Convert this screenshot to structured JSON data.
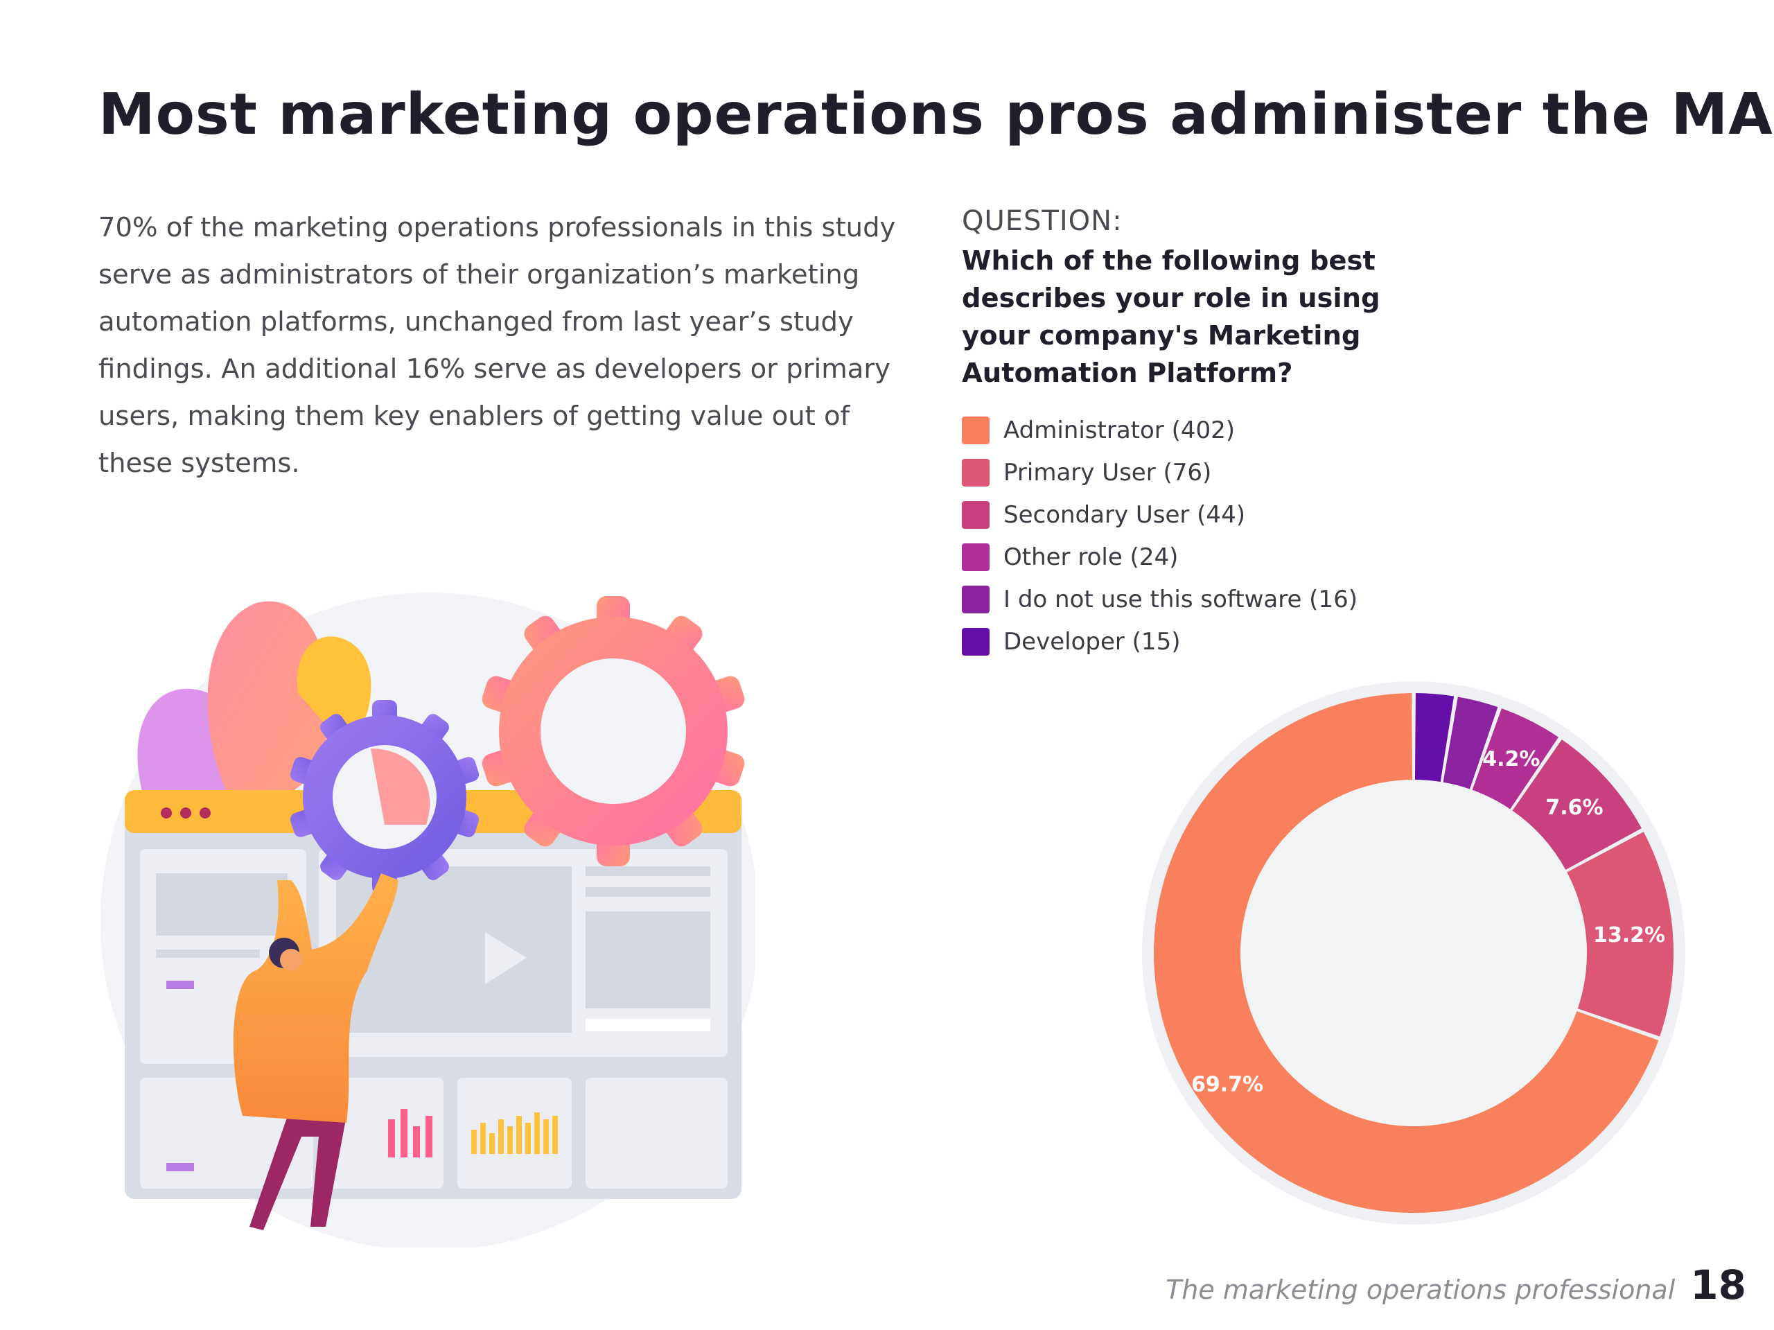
{
  "title": "Most marketing operations pros administer the MAP",
  "body_text": "70% of the marketing operations professionals in this study serve as administrators of their organization’s marketing automation platforms, unchanged from last year’s study findings. An additional 16% serve as developers or primary users, making them key enablers of getting value out of these systems.",
  "question": {
    "label": "QUESTION:",
    "text": "Which of the following best describes your role in using your company's Marketing Automation Platform?"
  },
  "legend": [
    {
      "label": "Administrator (402)",
      "color": "#F8805D"
    },
    {
      "label": "Primary User (76)",
      "color": "#DC5775"
    },
    {
      "label": "Secondary User (44)",
      "color": "#C9407F"
    },
    {
      "label": "Other role (24)",
      "color": "#B12F94"
    },
    {
      "label": "I do not use this software (16)",
      "color": "#8B22A0"
    },
    {
      "label": "Developer (15)",
      "color": "#6410A8"
    }
  ],
  "chart_data": {
    "type": "pie",
    "donut": true,
    "title": "Which of the following best describes your role in using your company's Marketing Automation Platform?",
    "categories": [
      "Administrator",
      "Primary User",
      "Secondary User",
      "Other role",
      "I do not use this software",
      "Developer"
    ],
    "values": [
      402,
      76,
      44,
      24,
      16,
      15
    ],
    "percent_labels": [
      "69.7%",
      "13.2%",
      "7.6%",
      "4.2%",
      "",
      ""
    ],
    "colors": [
      "#F8805D",
      "#DC5775",
      "#C9407F",
      "#B12F94",
      "#8B22A0",
      "#6410A8"
    ]
  },
  "footer": {
    "text": "The marketing operations professional",
    "page_number": "18"
  }
}
